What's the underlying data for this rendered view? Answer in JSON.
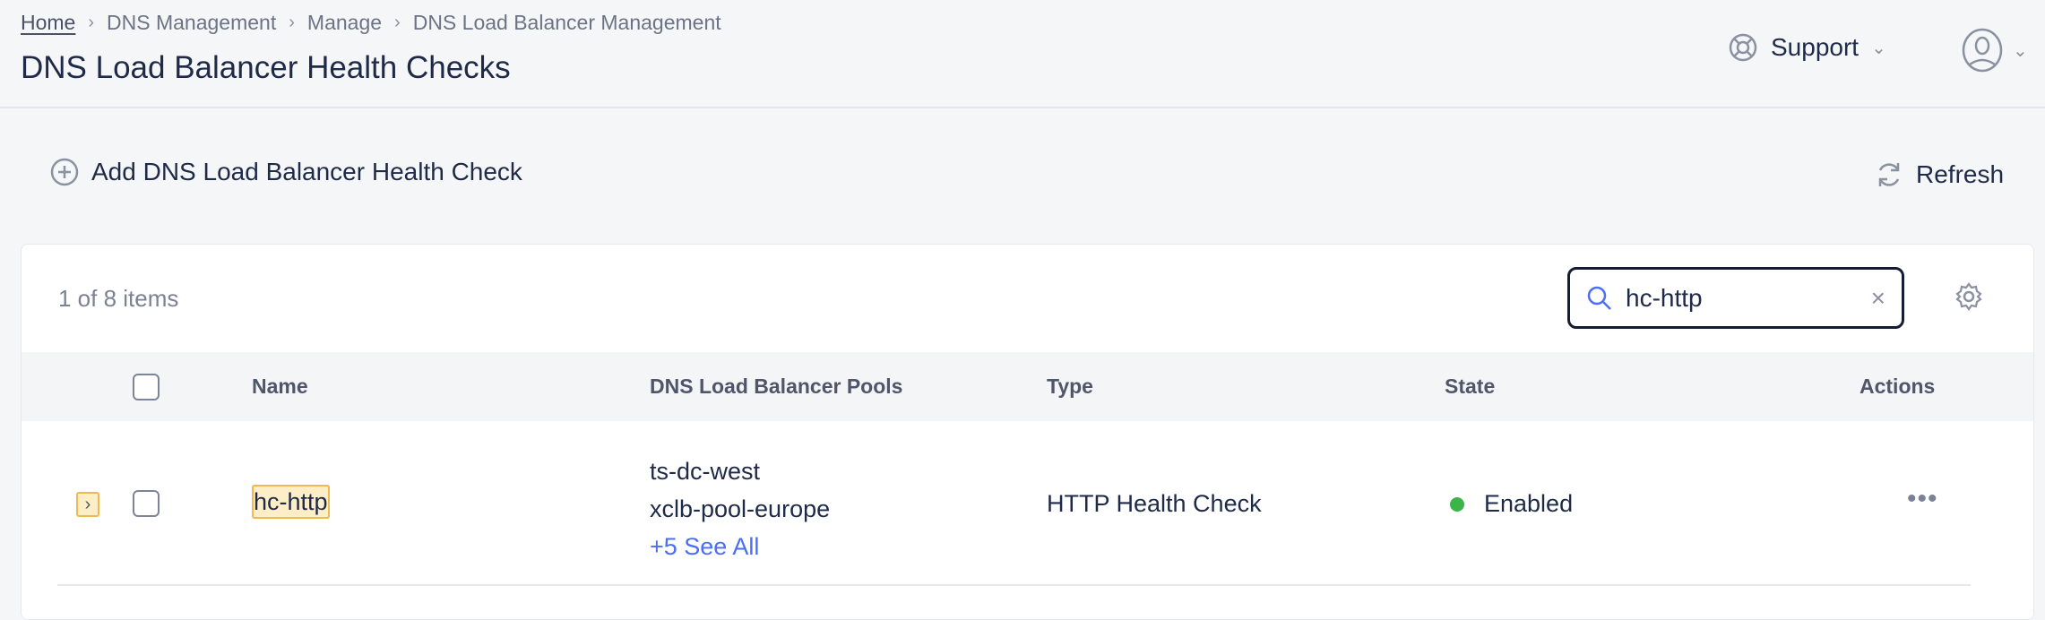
{
  "breadcrumb": [
    "Home",
    "DNS Management",
    "Manage",
    "DNS Load Balancer Management"
  ],
  "page_title": "DNS Load Balancer Health Checks",
  "header": {
    "support_label": "Support"
  },
  "toolbar": {
    "add_label": "Add DNS Load Balancer Health Check",
    "refresh_label": "Refresh"
  },
  "table": {
    "count_text": "1 of 8 items",
    "search": {
      "value": "hc-http"
    },
    "columns": [
      "Name",
      "DNS Load Balancer Pools",
      "Type",
      "State",
      "Actions"
    ],
    "rows": [
      {
        "name": "hc-http",
        "pools": [
          "ts-dc-west",
          "xclb-pool-europe"
        ],
        "see_all": "+5 See All",
        "type": "HTTP Health Check",
        "state": "Enabled",
        "state_color": "#3bb54a"
      }
    ]
  },
  "colors": {
    "accent": "#4a6ef5",
    "highlight": "#fdeec8"
  }
}
